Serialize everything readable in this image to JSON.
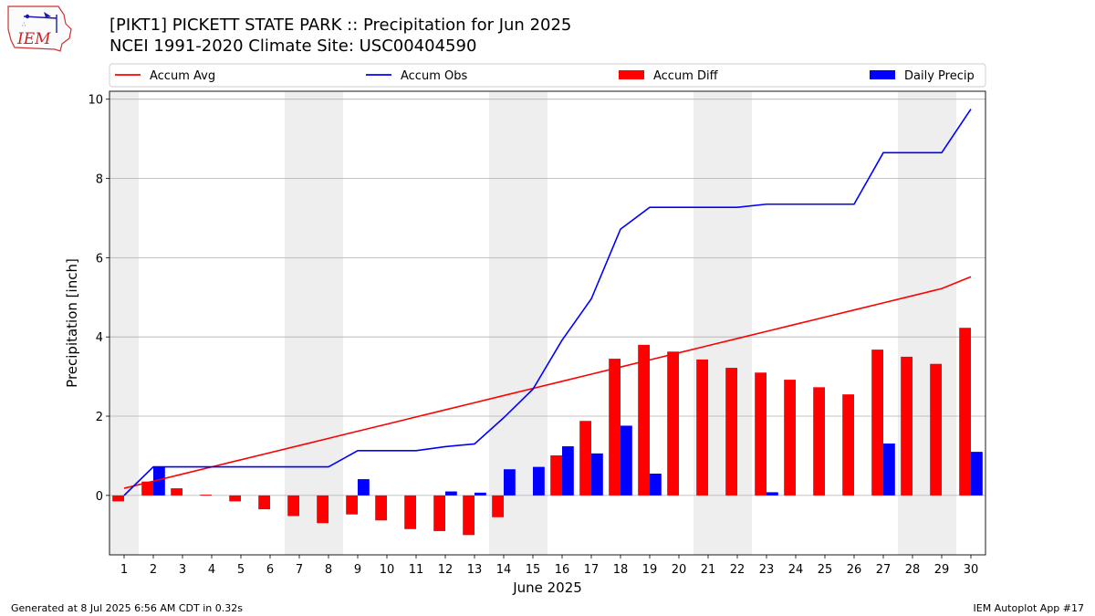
{
  "header": {
    "logo_text": "IEM",
    "title_line1": "[PIKT1] PICKETT STATE PARK :: Precipitation for Jun 2025",
    "title_line2": "NCEI 1991-2020 Climate Site: USC00404590"
  },
  "footer": {
    "left": "Generated at 8 Jul 2025 6:56 AM CDT in 0.32s",
    "right": "IEM Autoplot App #17"
  },
  "chart_data": {
    "type": "bar",
    "xlabel": "June 2025",
    "ylabel": "Precipitation [inch]",
    "xlim": [
      0.5,
      30.5
    ],
    "ylim": [
      -1.5,
      10.2
    ],
    "yticks": [
      0,
      2,
      4,
      6,
      8,
      10
    ],
    "x": [
      1,
      2,
      3,
      4,
      5,
      6,
      7,
      8,
      9,
      10,
      11,
      12,
      13,
      14,
      15,
      16,
      17,
      18,
      19,
      20,
      21,
      22,
      23,
      24,
      25,
      26,
      27,
      28,
      29,
      30
    ],
    "weekend_spans": [
      [
        0.5,
        1.5
      ],
      [
        6.5,
        8.5
      ],
      [
        13.5,
        15.5
      ],
      [
        20.5,
        22.5
      ],
      [
        27.5,
        29.5
      ]
    ],
    "grid": "horizontal",
    "legend_position": "top",
    "legend_columns": 4,
    "series": [
      {
        "name": "Accum Avg",
        "kind": "line",
        "color": "#ff0000",
        "values": [
          0.18,
          0.36,
          0.54,
          0.72,
          0.9,
          1.08,
          1.26,
          1.44,
          1.62,
          1.8,
          1.98,
          2.16,
          2.34,
          2.52,
          2.7,
          2.88,
          3.06,
          3.24,
          3.42,
          3.6,
          3.78,
          3.96,
          4.14,
          4.32,
          4.5,
          4.68,
          4.86,
          5.04,
          5.22,
          5.52
        ]
      },
      {
        "name": "Accum Obs",
        "kind": "line",
        "color": "#0000ff",
        "values": [
          0.0,
          0.72,
          0.72,
          0.72,
          0.72,
          0.72,
          0.72,
          0.72,
          1.13,
          1.13,
          1.13,
          1.23,
          1.3,
          1.96,
          2.68,
          3.92,
          4.96,
          6.72,
          7.27,
          7.27,
          7.27,
          7.27,
          7.35,
          7.35,
          7.35,
          7.35,
          8.65,
          8.65,
          8.65,
          9.75
        ]
      },
      {
        "name": "Accum Diff",
        "kind": "bar",
        "color": "#ff0000",
        "values": [
          -0.15,
          0.35,
          0.18,
          0.02,
          -0.15,
          -0.35,
          -0.52,
          -0.7,
          -0.48,
          -0.63,
          -0.85,
          -0.9,
          -1.0,
          -0.55,
          0.0,
          1.01,
          1.88,
          3.45,
          3.8,
          3.63,
          3.43,
          3.22,
          3.1,
          2.92,
          2.73,
          2.55,
          3.68,
          3.5,
          3.32,
          4.23
        ]
      },
      {
        "name": "Daily Precip",
        "kind": "bar",
        "color": "#0000ff",
        "values": [
          0.0,
          0.72,
          0.0,
          0.0,
          0.0,
          0.0,
          0.0,
          0.0,
          0.41,
          0.0,
          0.0,
          0.1,
          0.07,
          0.66,
          0.72,
          1.24,
          1.06,
          1.76,
          0.55,
          0.0,
          0.0,
          0.0,
          0.08,
          0.0,
          0.0,
          0.0,
          1.31,
          0.0,
          0.0,
          1.1
        ]
      }
    ]
  }
}
